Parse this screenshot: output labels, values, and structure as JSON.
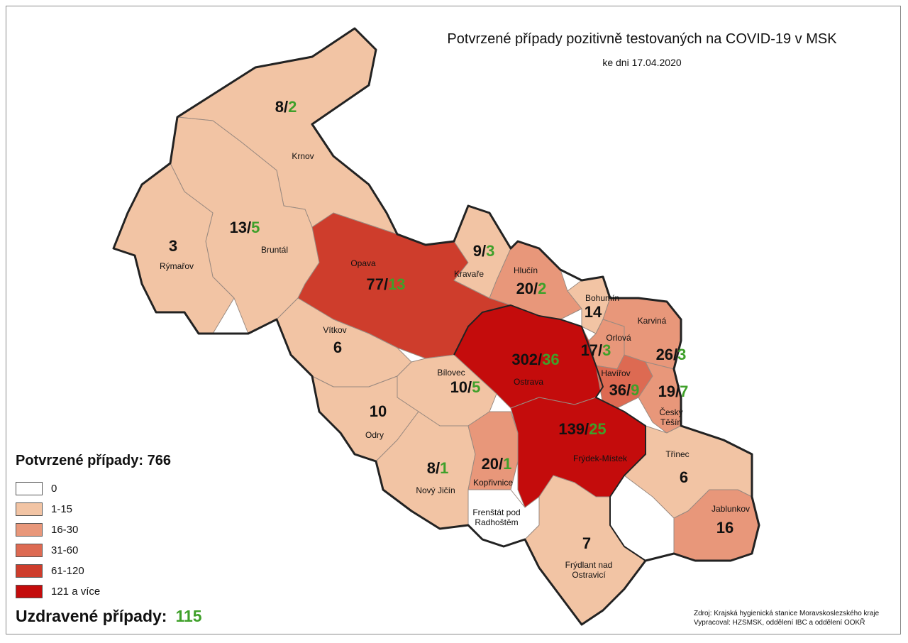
{
  "header": {
    "title": "Potvrzené případy pozitivně testovaných na COVID-19 v MSK",
    "date": "ke dni 17.04.2020"
  },
  "legend": {
    "confirmed_label": "Potvrzené případy:",
    "confirmed_total": "766",
    "classes": [
      {
        "label": "0",
        "color": "#ffffff"
      },
      {
        "label": "1-15",
        "color": "#f2c4a4"
      },
      {
        "label": "16-30",
        "color": "#e8977a"
      },
      {
        "label": "31-60",
        "color": "#dd6a52"
      },
      {
        "label": "61-120",
        "color": "#ce3d2c"
      },
      {
        "label": "121 a více",
        "color": "#c40c0c"
      }
    ]
  },
  "recovered": {
    "label": "Uzdravené případy:",
    "total": "115"
  },
  "source": {
    "line1": "Zdroj: Krajská hygienická stanice Moravskoslezského kraje",
    "line2": "Vypracoval: HZSMSK, oddělení IBC a oddělení OOKŘ"
  },
  "regions": [
    {
      "name": "Krnov",
      "confirmed": 8,
      "recovered": 2,
      "color": "#f2c4a4"
    },
    {
      "name": "Bruntál",
      "confirmed": 13,
      "recovered": 5,
      "color": "#f2c4a4"
    },
    {
      "name": "Rýmařov",
      "confirmed": 3,
      "recovered": null,
      "color": "#f2c4a4"
    },
    {
      "name": "Opava",
      "confirmed": 77,
      "recovered": 13,
      "color": "#ce3d2c"
    },
    {
      "name": "Kravaře",
      "confirmed": 9,
      "recovered": 3,
      "color": "#f2c4a4"
    },
    {
      "name": "Hlučín",
      "confirmed": 20,
      "recovered": 2,
      "color": "#e8977a"
    },
    {
      "name": "Bohumín",
      "confirmed": 14,
      "recovered": null,
      "color": "#f2c4a4"
    },
    {
      "name": "Karviná",
      "confirmed": 26,
      "recovered": 3,
      "color": "#e8977a"
    },
    {
      "name": "Orlová",
      "confirmed": 17,
      "recovered": 3,
      "color": "#e8977a"
    },
    {
      "name": "Vítkov",
      "confirmed": 6,
      "recovered": null,
      "color": "#f2c4a4"
    },
    {
      "name": "Ostrava",
      "confirmed": 302,
      "recovered": 36,
      "color": "#c40c0c"
    },
    {
      "name": "Havířov",
      "confirmed": 36,
      "recovered": 9,
      "color": "#dd6a52"
    },
    {
      "name": "Český Těšín",
      "confirmed": 19,
      "recovered": 7,
      "color": "#e8977a"
    },
    {
      "name": "Bílovec",
      "confirmed": 10,
      "recovered": 5,
      "color": "#f2c4a4"
    },
    {
      "name": "Odry",
      "confirmed": 10,
      "recovered": null,
      "color": "#f2c4a4"
    },
    {
      "name": "Nový Jičín",
      "confirmed": 8,
      "recovered": 1,
      "color": "#f2c4a4"
    },
    {
      "name": "Kopřivnice",
      "confirmed": 20,
      "recovered": 1,
      "color": "#e8977a"
    },
    {
      "name": "Frýdek-Místek",
      "confirmed": 139,
      "recovered": 25,
      "color": "#c40c0c"
    },
    {
      "name": "Třinec",
      "confirmed": 6,
      "recovered": null,
      "color": "#f2c4a4"
    },
    {
      "name": "Jablunkov",
      "confirmed": 16,
      "recovered": null,
      "color": "#e8977a"
    },
    {
      "name": "Frenštát pod Radhoštěm",
      "confirmed": 0,
      "recovered": null,
      "color": "#ffffff"
    },
    {
      "name": "Frýdlant nad Ostravicí",
      "confirmed": 7,
      "recovered": null,
      "color": "#f2c4a4"
    }
  ]
}
